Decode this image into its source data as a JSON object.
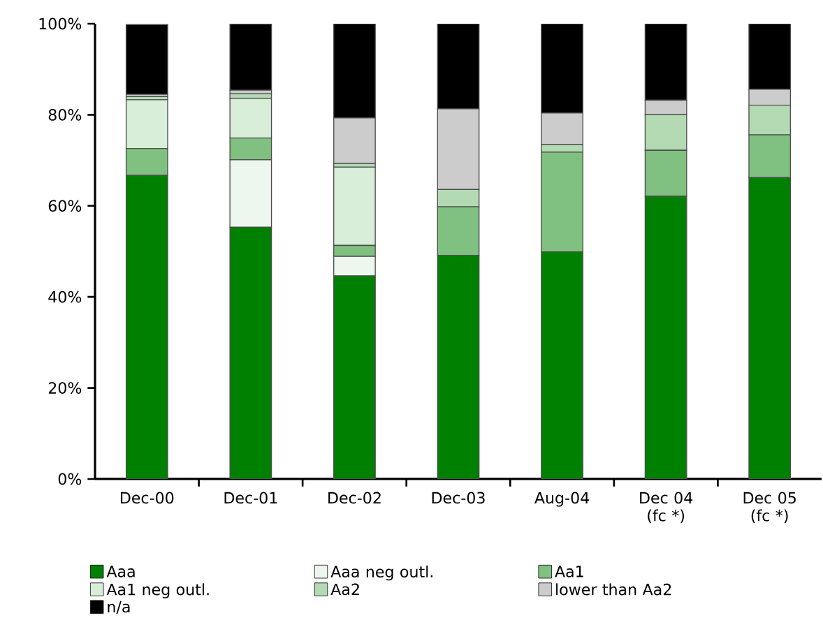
{
  "chart_data": {
    "type": "bar",
    "stacked": true,
    "categories": [
      "Dec-00",
      "Dec-01",
      "Dec-02",
      "Dec-03",
      "Aug-04",
      "Dec 04 (fc *)",
      "Dec 05 (fc *)"
    ],
    "series": [
      {
        "name": "Aaa",
        "color": "#008000",
        "values": [
          66.7,
          55.3,
          44.6,
          49.1,
          49.9,
          62.1,
          66.2
        ]
      },
      {
        "name": "Aaa neg outl.",
        "color": "#eef7ee",
        "values": [
          0,
          14.8,
          4.3,
          0,
          0,
          0,
          0
        ]
      },
      {
        "name": "Aa1",
        "color": "#80c080",
        "values": [
          5.9,
          4.8,
          2.4,
          10.7,
          21.9,
          10.1,
          9.4
        ]
      },
      {
        "name": "Aa1 neg outl.",
        "color": "#d9eed9",
        "values": [
          10.7,
          8.7,
          17.2,
          0,
          0,
          0,
          0
        ]
      },
      {
        "name": "Aa2",
        "color": "#b3dab3",
        "values": [
          0.7,
          1.0,
          0.8,
          3.8,
          1.7,
          7.9,
          6.5
        ]
      },
      {
        "name": "lower than Aa2",
        "color": "#cccccc",
        "values": [
          0.5,
          0.8,
          10.0,
          17.7,
          6.9,
          3.1,
          3.5
        ]
      },
      {
        "name": "n/a",
        "color": "#000000",
        "values": [
          15.3,
          14.5,
          20.7,
          18.7,
          19.6,
          16.8,
          14.4
        ]
      }
    ],
    "ylim": [
      0,
      100
    ],
    "yticks": [
      {
        "value": 0,
        "label": "0%"
      },
      {
        "value": 20,
        "label": "20%"
      },
      {
        "value": 40,
        "label": "40%"
      },
      {
        "value": 60,
        "label": "60%"
      },
      {
        "value": 80,
        "label": "80%"
      },
      {
        "value": 100,
        "label": "100%"
      }
    ],
    "grid": false,
    "legend": "bottom"
  }
}
